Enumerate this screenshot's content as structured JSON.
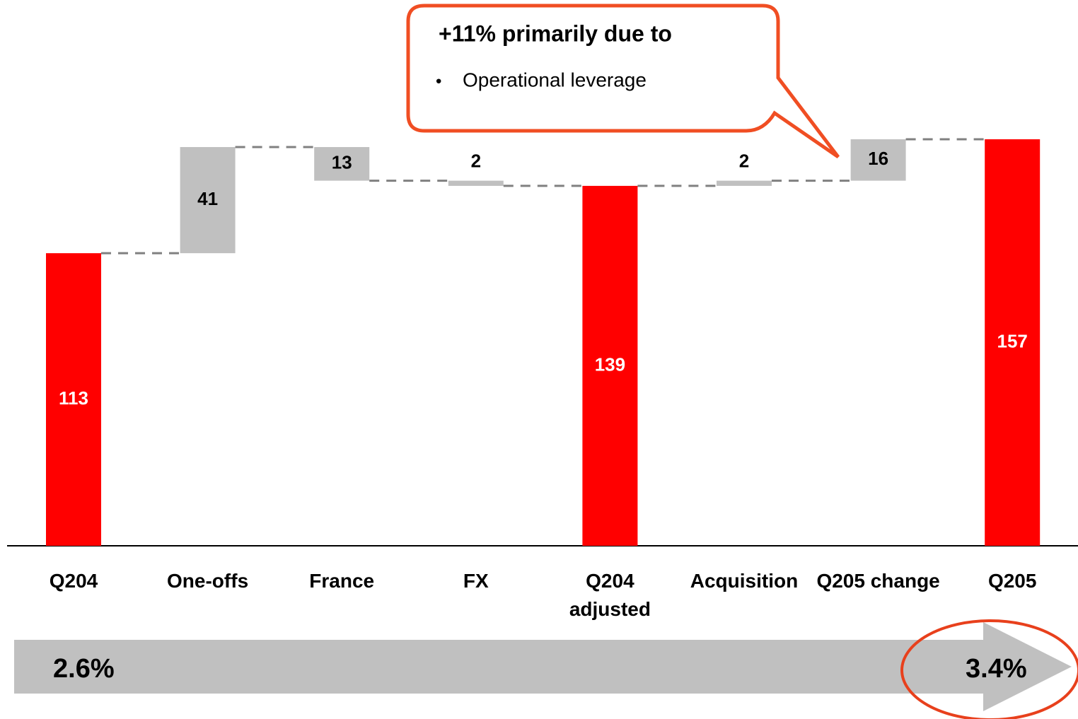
{
  "chart_data": {
    "type": "waterfall",
    "categories": [
      "Q204",
      "One-offs",
      "France",
      "FX",
      "Q204 adjusted",
      "Acquisition",
      "Q205 change",
      "Q205"
    ],
    "values": [
      113,
      41,
      -13,
      -2,
      139,
      2,
      16,
      157
    ],
    "value_labels": [
      "113",
      "41",
      "13",
      "2",
      "139",
      "2",
      "16",
      "157"
    ],
    "measure": [
      "absolute",
      "relative",
      "relative",
      "relative",
      "absolute",
      "relative",
      "relative",
      "absolute"
    ],
    "total_color": "#ff0000",
    "change_color": "#c0c0c0",
    "ylim": [
      0,
      160
    ],
    "callout_title": "+11% primarily due to",
    "callout_bullet": "Operational leverage",
    "start_margin": "2.6%",
    "end_margin": "3.4%"
  }
}
